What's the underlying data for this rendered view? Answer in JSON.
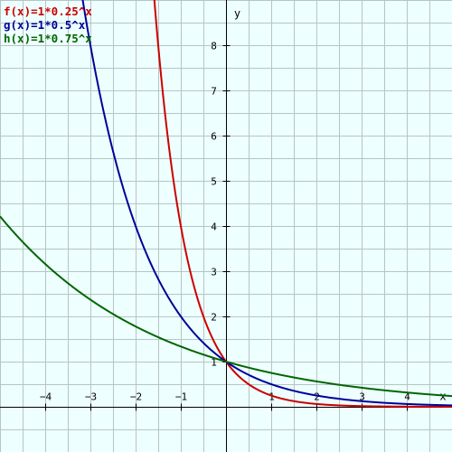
{
  "chart_data": {
    "type": "line",
    "title": "",
    "xlabel": "x",
    "ylabel": "y",
    "xlim": [
      -5,
      5
    ],
    "ylim": [
      -1,
      9
    ],
    "grid": true,
    "legend_position": "top-left",
    "x_ticks": [
      -4,
      -3,
      -2,
      -1,
      1,
      2,
      3,
      4
    ],
    "y_ticks": [
      1,
      2,
      3,
      4,
      5,
      6,
      7,
      8
    ],
    "series": [
      {
        "name": "f(x)=1*0.25^x",
        "base": 0.25,
        "coefficient": 1,
        "color": "#cc0000"
      },
      {
        "name": "g(x)=1*0.5^x",
        "base": 0.5,
        "coefficient": 1,
        "color": "#000099"
      },
      {
        "name": "h(x)=1*0.75^x",
        "base": 0.75,
        "coefficient": 1,
        "color": "#006600"
      }
    ]
  }
}
